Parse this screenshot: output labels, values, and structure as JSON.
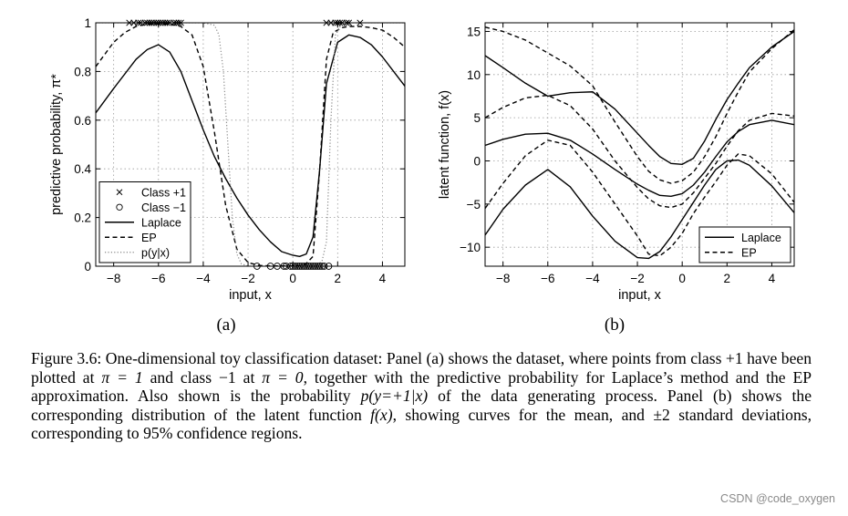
{
  "chart_data": [
    {
      "type": "line",
      "panel_label": "(a)",
      "xlabel": "input, x",
      "ylabel": "predictive probability, π*",
      "xlim": [
        -8.8,
        5.0
      ],
      "ylim": [
        0,
        1
      ],
      "xticks": [
        -8,
        -6,
        -4,
        -2,
        0,
        2,
        4
      ],
      "yticks": [
        0,
        0.2,
        0.4,
        0.6,
        0.8,
        1
      ],
      "ytick_labels": [
        "0",
        "0.2",
        "0.4",
        "0.6",
        "0.8",
        "1"
      ],
      "grid": true,
      "legend_position": "bottom-left",
      "legend": [
        "Class +1",
        "Class −1",
        "Laplace",
        "EP",
        "p(y|x)"
      ],
      "series": [
        {
          "name": "Class +1",
          "style": "x-marker",
          "y_const": 1,
          "x": [
            -7.3,
            -7.1,
            -6.9,
            -6.8,
            -6.6,
            -6.5,
            -6.4,
            -6.3,
            -6.2,
            -6.1,
            -6.0,
            -5.9,
            -5.8,
            -5.7,
            -5.6,
            -5.5,
            -5.3,
            -5.2,
            -5.1,
            -5.0,
            1.5,
            1.7,
            1.9,
            2.0,
            2.1,
            2.2,
            2.4,
            2.5,
            3.0
          ]
        },
        {
          "name": "Class −1",
          "style": "o-marker",
          "y_const": 0,
          "x": [
            -1.6,
            -1.0,
            -0.7,
            -0.4,
            -0.3,
            -0.1,
            0.0,
            0.1,
            0.2,
            0.3,
            0.4,
            0.5,
            0.6,
            0.7,
            0.8,
            0.9,
            1.0,
            1.1,
            1.2,
            1.3,
            1.4,
            1.6
          ]
        },
        {
          "name": "Laplace",
          "style": "solid",
          "x": [
            -8.8,
            -8.0,
            -7.0,
            -6.5,
            -6.0,
            -5.5,
            -5.0,
            -4.5,
            -4.0,
            -3.5,
            -3.0,
            -2.5,
            -2.0,
            -1.5,
            -1.0,
            -0.5,
            0.0,
            0.3,
            0.6,
            0.9,
            1.2,
            1.5,
            2.0,
            2.5,
            3.0,
            3.5,
            4.0,
            4.5,
            5.0
          ],
          "y": [
            0.63,
            0.73,
            0.85,
            0.89,
            0.91,
            0.88,
            0.8,
            0.68,
            0.56,
            0.45,
            0.36,
            0.28,
            0.21,
            0.15,
            0.1,
            0.06,
            0.045,
            0.04,
            0.05,
            0.12,
            0.4,
            0.75,
            0.92,
            0.95,
            0.94,
            0.91,
            0.86,
            0.8,
            0.74
          ]
        },
        {
          "name": "EP",
          "style": "dashed",
          "x": [
            -8.8,
            -8.0,
            -7.5,
            -7.0,
            -6.5,
            -6.0,
            -5.5,
            -5.0,
            -4.5,
            -4.0,
            -3.5,
            -3.0,
            -2.5,
            -2.0,
            -1.5,
            -1.0,
            -0.5,
            0.0,
            0.5,
            0.9,
            1.2,
            1.5,
            1.8,
            2.2,
            2.5,
            3.0,
            3.5,
            4.0,
            4.5,
            5.0
          ],
          "y": [
            0.82,
            0.92,
            0.96,
            0.985,
            0.995,
            0.998,
            0.995,
            0.985,
            0.95,
            0.82,
            0.55,
            0.25,
            0.07,
            0.015,
            0.003,
            0.001,
            0.001,
            0.001,
            0.002,
            0.04,
            0.4,
            0.85,
            0.96,
            0.98,
            0.985,
            0.985,
            0.98,
            0.97,
            0.94,
            0.9
          ]
        },
        {
          "name": "p(y|x)",
          "style": "dotted",
          "x": [
            -8.8,
            -4.0,
            -3.5,
            -3.3,
            -3.1,
            -2.9,
            -2.7,
            -2.5,
            -2.3,
            -2.0,
            -1.5,
            0.0,
            1.0,
            1.3,
            1.5,
            1.7,
            1.9,
            2.2,
            5.0
          ],
          "y": [
            1.0,
            1.0,
            0.99,
            0.95,
            0.8,
            0.5,
            0.2,
            0.05,
            0.01,
            0.0,
            0.0,
            0.0,
            0.0,
            0.02,
            0.1,
            0.6,
            0.95,
            1.0,
            1.0
          ]
        }
      ]
    },
    {
      "type": "line",
      "panel_label": "(b)",
      "xlabel": "input, x",
      "ylabel": "latent function, f(x)",
      "xlim": [
        -8.8,
        5.0
      ],
      "ylim": [
        -12.2,
        16.0
      ],
      "xticks": [
        -8,
        -6,
        -4,
        -2,
        0,
        2,
        4
      ],
      "yticks": [
        -10,
        -5,
        0,
        5,
        10,
        15
      ],
      "ytick_labels": [
        "−10",
        "−5",
        "0",
        "5",
        "10",
        "15"
      ],
      "grid": true,
      "legend_position": "bottom-right",
      "legend": [
        "Laplace",
        "EP"
      ],
      "x": [
        -8.8,
        -8.0,
        -7.0,
        -6.0,
        -5.0,
        -4.0,
        -3.0,
        -2.0,
        -1.5,
        -1.0,
        -0.5,
        0.0,
        0.5,
        1.0,
        1.5,
        2.0,
        2.5,
        3.0,
        4.0,
        5.0
      ],
      "series": [
        {
          "name": "Laplace",
          "style": "solid",
          "role": "upper",
          "y": [
            12.2,
            10.8,
            9.0,
            7.5,
            7.9,
            8.0,
            6.0,
            3.2,
            1.8,
            0.5,
            -0.3,
            -0.4,
            0.3,
            2.3,
            4.8,
            7.1,
            9.0,
            10.8,
            13.2,
            15.0
          ]
        },
        {
          "name": "Laplace",
          "style": "solid",
          "role": "mean",
          "y": [
            1.8,
            2.5,
            3.1,
            3.2,
            2.4,
            0.8,
            -1.0,
            -2.7,
            -3.4,
            -4.0,
            -4.1,
            -3.8,
            -2.8,
            -1.3,
            0.5,
            2.2,
            3.4,
            4.2,
            4.7,
            4.2
          ]
        },
        {
          "name": "Laplace",
          "style": "solid",
          "role": "lower",
          "y": [
            -8.6,
            -5.6,
            -2.8,
            -1.0,
            -3.0,
            -6.4,
            -9.3,
            -11.2,
            -11.3,
            -10.5,
            -8.8,
            -6.8,
            -4.8,
            -2.8,
            -1.0,
            0.0,
            0.1,
            -0.5,
            -2.9,
            -6.0
          ]
        },
        {
          "name": "EP",
          "style": "dashed",
          "role": "upper",
          "y": [
            15.5,
            15.0,
            14.0,
            12.5,
            11.0,
            8.7,
            4.5,
            0.5,
            -1.2,
            -2.2,
            -2.6,
            -2.3,
            -1.3,
            0.5,
            2.8,
            5.5,
            8.0,
            10.3,
            13.0,
            15.2
          ]
        },
        {
          "name": "EP",
          "style": "dashed",
          "role": "mean",
          "y": [
            5.0,
            6.2,
            7.3,
            7.6,
            6.4,
            3.7,
            0.0,
            -3.1,
            -4.4,
            -5.2,
            -5.4,
            -5.0,
            -3.7,
            -2.0,
            -0.3,
            1.7,
            3.5,
            4.7,
            5.5,
            5.2
          ]
        },
        {
          "name": "EP",
          "style": "dashed",
          "role": "lower",
          "y": [
            -5.5,
            -2.6,
            0.6,
            2.4,
            1.8,
            -1.3,
            -5.0,
            -8.7,
            -10.8,
            -11.0,
            -10.0,
            -8.4,
            -6.1,
            -4.2,
            -2.4,
            -0.5,
            0.8,
            0.6,
            -1.5,
            -4.8
          ]
        }
      ]
    }
  ],
  "caption_parts": {
    "p1": "Figure 3.6: One-dimensional toy classification dataset: Panel (a) shows the dataset, where points from class +1 have been plotted at ",
    "pi1": "π = 1",
    "p2": " and class −1 at ",
    "pi0": "π = 0",
    "p3": ", together with the predictive probability for Laplace’s method and the EP approximation. Also shown is the probability ",
    "pyx": "p(y=+1|x)",
    "p4": " of the data generating process. Panel (b) shows the corresponding distribution of the latent function ",
    "fx": "f(x)",
    "p5": ", showing curves for the mean, and ±2 standard deviations, corresponding to 95% confidence regions."
  },
  "watermark": "CSDN @code_oxygen"
}
